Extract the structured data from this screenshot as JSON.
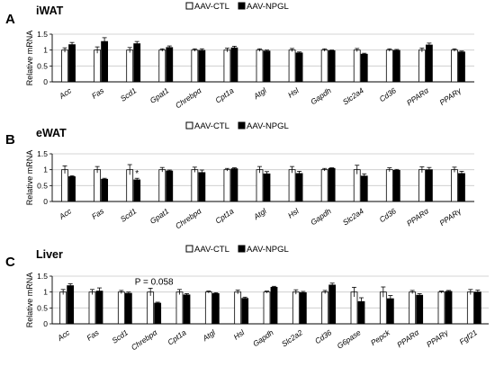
{
  "legend": {
    "ctl": "AAV-CTL",
    "npgl": "AAV-NPGL"
  },
  "colors": {
    "ctl": "#ffffff",
    "npgl": "#000000",
    "axis": "#000000",
    "grid": "#c8c8c8"
  },
  "chart_data": [
    {
      "type": "bar",
      "panel_letter": "A",
      "title": "iWAT",
      "ylabel": "Relative mRNA",
      "ylim": [
        0,
        1.5
      ],
      "yticks": [
        0,
        0.5,
        1,
        1.5
      ],
      "grid": true,
      "legend_position": "top",
      "categories": [
        "Acc",
        "Fas",
        "Scd1",
        "Gpat1",
        "Chrebpα",
        "Cpt1a",
        "Atgl",
        "Hsl",
        "Gapdh",
        "Slc2a4",
        "Cd36",
        "PPARα",
        "PPARγ"
      ],
      "categories_italic": true,
      "series": [
        {
          "name": "AAV-CTL",
          "values": [
            1.0,
            1.0,
            1.0,
            1.0,
            1.0,
            1.0,
            1.0,
            1.0,
            1.0,
            1.0,
            1.0,
            1.0,
            1.0
          ],
          "errors": [
            0.07,
            0.1,
            0.08,
            0.04,
            0.04,
            0.06,
            0.04,
            0.05,
            0.04,
            0.05,
            0.04,
            0.06,
            0.04
          ]
        },
        {
          "name": "AAV-NPGL",
          "values": [
            1.17,
            1.27,
            1.2,
            1.08,
            0.99,
            1.07,
            0.97,
            0.91,
            0.98,
            0.87,
            0.99,
            1.16,
            0.94
          ],
          "errors": [
            0.07,
            0.12,
            0.07,
            0.05,
            0.05,
            0.05,
            0.03,
            0.03,
            0.02,
            0.03,
            0.03,
            0.06,
            0.03
          ]
        }
      ],
      "annotations": []
    },
    {
      "type": "bar",
      "panel_letter": "B",
      "title": "eWAT",
      "ylabel": "Relative mRNA",
      "ylim": [
        0,
        1.5
      ],
      "yticks": [
        0,
        0.5,
        1,
        1.5
      ],
      "grid": true,
      "legend_position": "top",
      "categories": [
        "Acc",
        "Fas",
        "Scd1",
        "Gpat1",
        "Chrebpα",
        "Cpt1a",
        "Atgl",
        "Hsl",
        "Gapdh",
        "Slc2a4",
        "Cd36",
        "PPARα",
        "PPARγ"
      ],
      "categories_italic": true,
      "series": [
        {
          "name": "AAV-CTL",
          "values": [
            1.0,
            1.0,
            1.0,
            1.0,
            1.0,
            1.0,
            1.0,
            1.0,
            1.0,
            1.0,
            1.0,
            1.0,
            1.0
          ],
          "errors": [
            0.12,
            0.1,
            0.16,
            0.07,
            0.08,
            0.04,
            0.1,
            0.1,
            0.04,
            0.14,
            0.06,
            0.09,
            0.08
          ]
        },
        {
          "name": "AAV-NPGL",
          "values": [
            0.78,
            0.7,
            0.68,
            0.96,
            0.91,
            1.03,
            0.87,
            0.88,
            1.04,
            0.8,
            0.98,
            1.0,
            0.88
          ],
          "errors": [
            0.03,
            0.03,
            0.05,
            0.03,
            0.08,
            0.03,
            0.07,
            0.07,
            0.02,
            0.07,
            0.03,
            0.07,
            0.07
          ]
        }
      ],
      "annotations": [
        {
          "category": "Scd1",
          "text": "*"
        }
      ]
    },
    {
      "type": "bar",
      "panel_letter": "C",
      "title": "Liver",
      "ylabel": "Relative mRNA",
      "ylim": [
        0,
        1.5
      ],
      "yticks": [
        0,
        0.5,
        1,
        1.5
      ],
      "grid": true,
      "legend_position": "top",
      "categories": [
        "Acc",
        "Fas",
        "Scd1",
        "Chrebpα",
        "Cpt1a",
        "Atgl",
        "Hsl",
        "Gapdh",
        "Slc2a2",
        "Cd36",
        "G6pase",
        "Pepck",
        "PPARα",
        "PPARγ",
        "Fgf21"
      ],
      "categories_italic": true,
      "series": [
        {
          "name": "AAV-CTL",
          "values": [
            1.0,
            1.0,
            1.0,
            1.0,
            1.0,
            1.0,
            1.0,
            1.0,
            1.0,
            1.0,
            1.0,
            1.0,
            1.0,
            1.0,
            1.0
          ],
          "errors": [
            0.08,
            0.08,
            0.05,
            0.12,
            0.08,
            0.03,
            0.06,
            0.03,
            0.07,
            0.05,
            0.15,
            0.16,
            0.05,
            0.03,
            0.08
          ]
        },
        {
          "name": "AAV-NPGL",
          "values": [
            1.2,
            1.03,
            0.96,
            0.65,
            0.91,
            0.95,
            0.8,
            1.15,
            0.98,
            1.22,
            0.7,
            0.79,
            0.9,
            1.02,
            1.0
          ],
          "errors": [
            0.06,
            0.1,
            0.04,
            0.03,
            0.04,
            0.03,
            0.04,
            0.03,
            0.04,
            0.06,
            0.12,
            0.1,
            0.05,
            0.03,
            0.06
          ]
        }
      ],
      "annotations": [
        {
          "category": "Chrebpα",
          "text": "P = 0.058"
        }
      ]
    }
  ]
}
